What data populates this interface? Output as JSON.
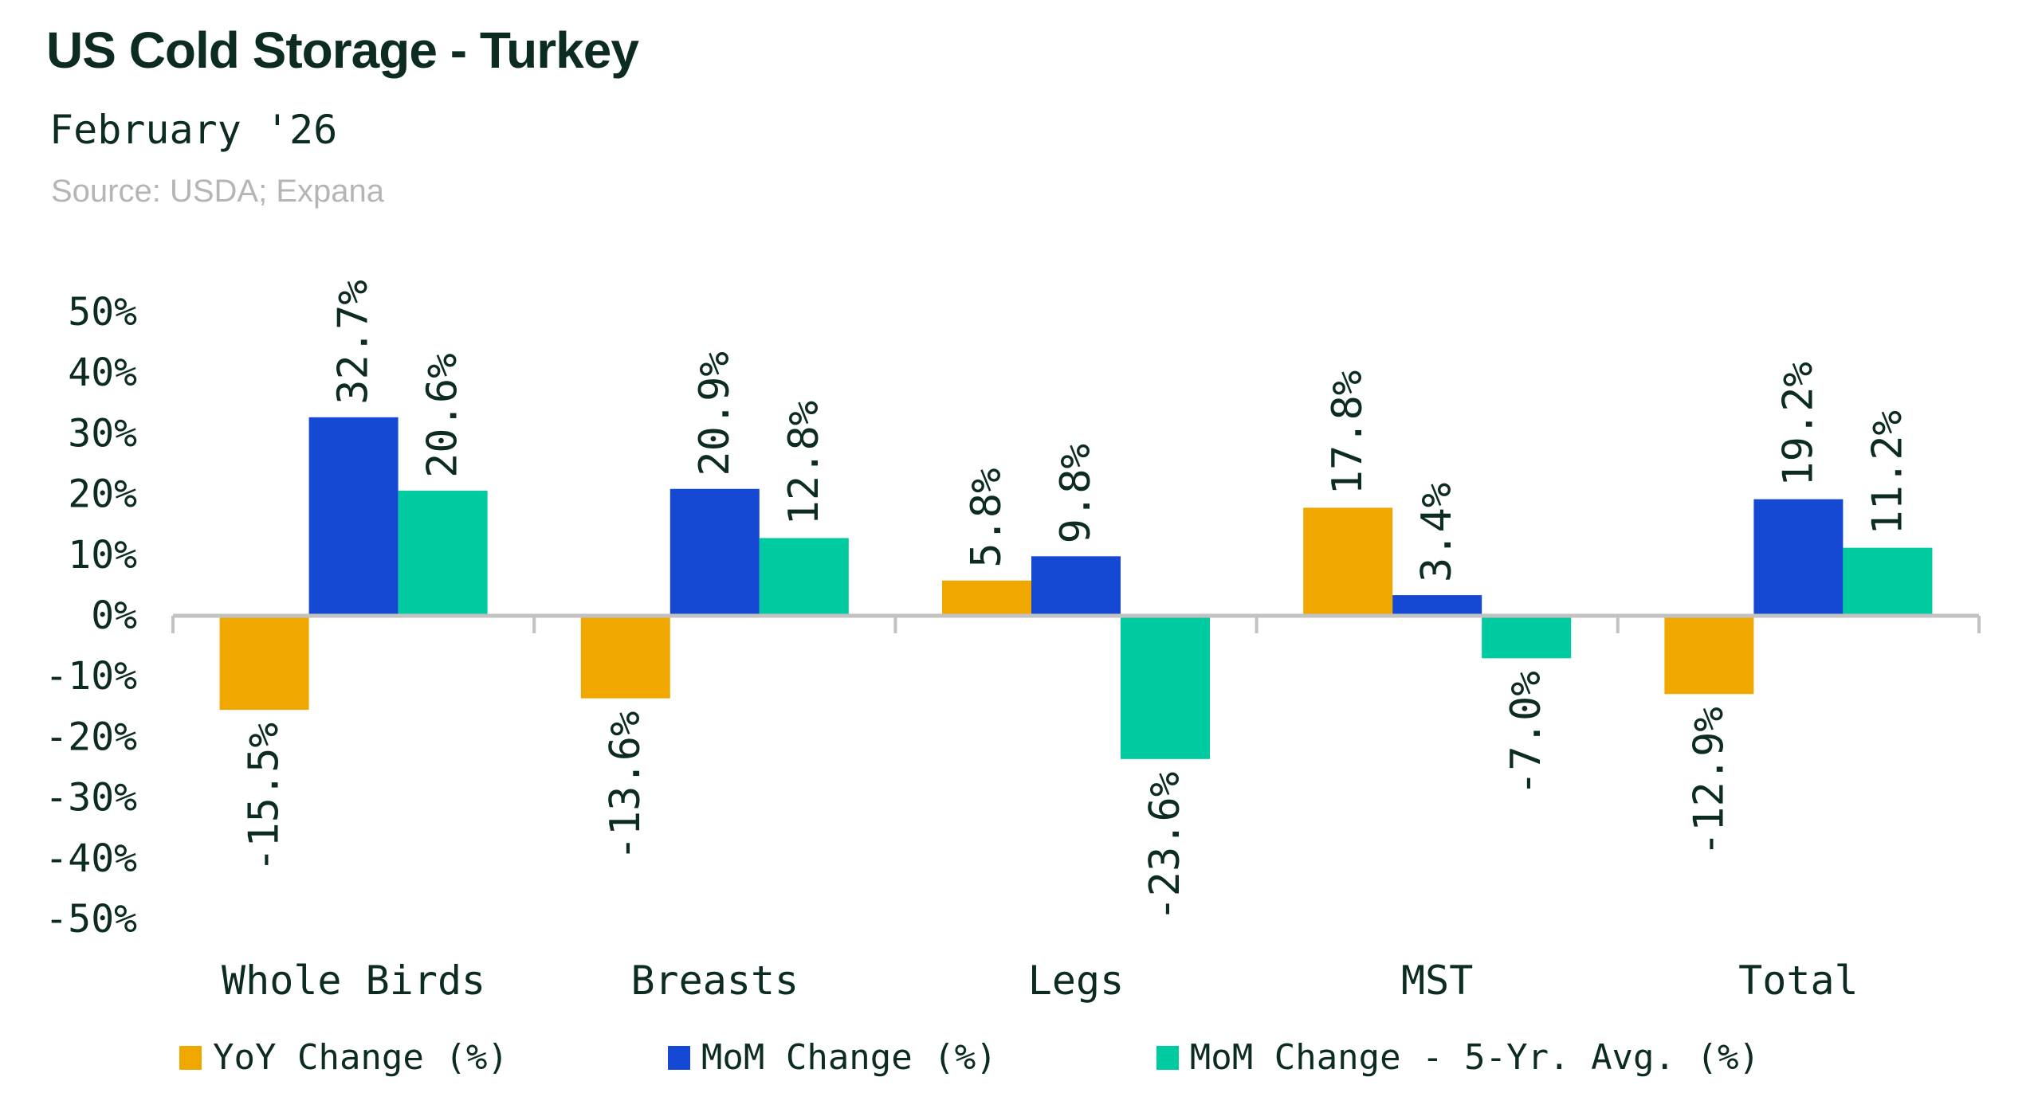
{
  "header": {
    "title": "US Cold Storage - Turkey",
    "subtitle": "February '26",
    "source": "Source: USDA; Expana"
  },
  "colors": {
    "text_dark": "#0C2B22",
    "source_gray": "#B5B5B5",
    "axis_gray": "#C2C2C2",
    "background": "#FFFFFF",
    "orange": "#F0A800",
    "blue": "#1649D3",
    "teal": "#00CBA0"
  },
  "chart_data": {
    "type": "bar",
    "title": "US Cold Storage - Turkey",
    "subtitle": "February '26",
    "source": "Source: USDA; Expana",
    "categories": [
      "Whole Birds",
      "Breasts",
      "Legs",
      "MST",
      "Total"
    ],
    "series": [
      {
        "name": "YoY Change (%)",
        "color": "#F0A800",
        "values": [
          -15.5,
          -13.6,
          5.8,
          17.8,
          -12.9
        ]
      },
      {
        "name": "MoM Change (%)",
        "color": "#1649D3",
        "values": [
          32.7,
          20.9,
          9.8,
          3.4,
          19.2
        ]
      },
      {
        "name": "MoM Change - 5-Yr. Avg. (%)",
        "color": "#00CBA0",
        "values": [
          20.6,
          12.8,
          -23.6,
          -7.0,
          11.2
        ]
      }
    ],
    "ylabel": "",
    "xlabel": "",
    "ylim": [
      -50,
      50
    ],
    "ytick_step": 10,
    "ytick_suffix": "%",
    "grid": false,
    "legend_position": "bottom",
    "data_labels": "one_decimal_percent",
    "data_label_rotation": 90
  }
}
